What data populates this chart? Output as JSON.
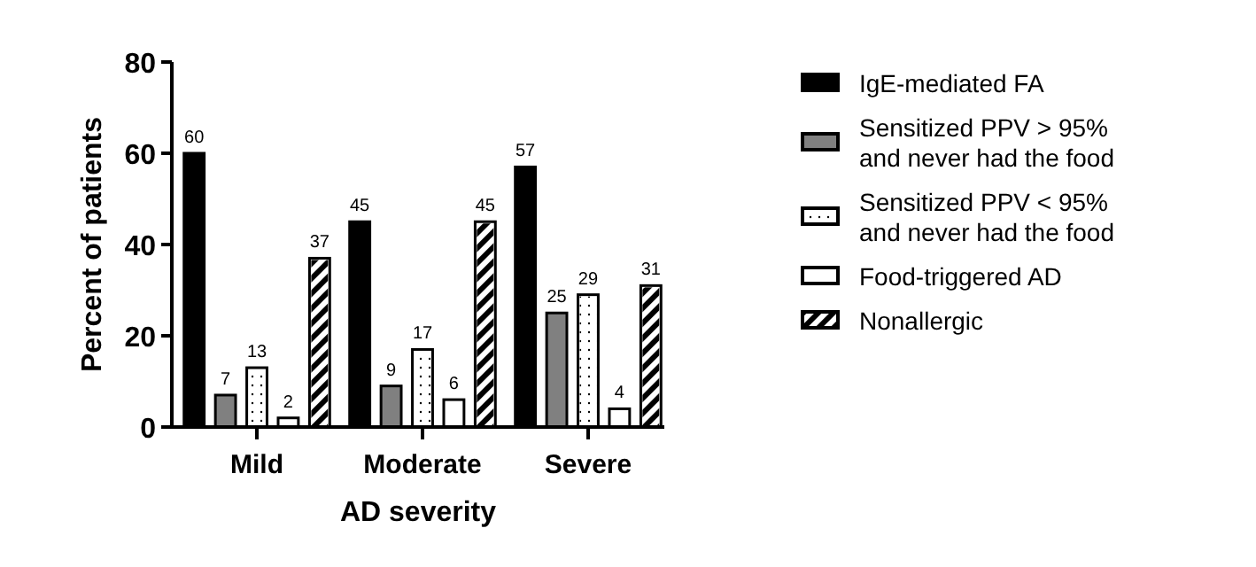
{
  "chart_data": {
    "type": "bar",
    "xlabel": "AD severity",
    "ylabel": "Percent of patients",
    "categories": [
      "Mild",
      "Moderate",
      "Severe"
    ],
    "series": [
      {
        "name": "IgE-mediated FA",
        "color": "#000000",
        "values": [
          60,
          45,
          57
        ]
      },
      {
        "name": "Sensitized PPV > 95% and never had the food",
        "color": "#808080",
        "values": [
          7,
          9,
          25
        ]
      },
      {
        "name": "Sensitized PPV < 95% and never had the food",
        "color": "#ffffff",
        "values": [
          13,
          17,
          29
        ]
      },
      {
        "name": "Food-triggered AD",
        "color": "#ffffff",
        "values": [
          2,
          6,
          4
        ]
      },
      {
        "name": "Nonallergic",
        "color": "#ffffff",
        "values": [
          37,
          45,
          31
        ]
      }
    ],
    "ylim": [
      0,
      80
    ],
    "yticks": [
      0,
      20,
      40,
      60,
      80
    ],
    "data_labels": true,
    "legend": "right",
    "grid": false
  }
}
